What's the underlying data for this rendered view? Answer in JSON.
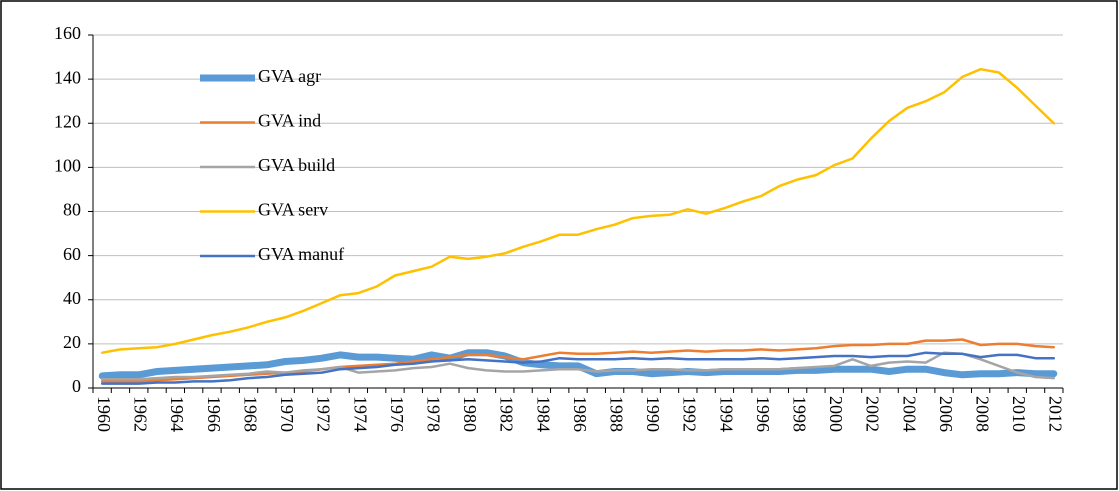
{
  "chart_data": {
    "type": "line",
    "categories": [
      "1960",
      null,
      "1962",
      null,
      "1964",
      null,
      "1966",
      null,
      "1968",
      null,
      "1970",
      null,
      "1972",
      null,
      "1974",
      null,
      "1976",
      null,
      "1978",
      null,
      "1980",
      null,
      "1982",
      null,
      "1984",
      null,
      "1986",
      null,
      "1988",
      null,
      "1990",
      null,
      "1992",
      null,
      "1994",
      null,
      "1996",
      null,
      "1998",
      null,
      "2000",
      null,
      "2002",
      null,
      "2004",
      null,
      "2006",
      null,
      "2008",
      null,
      "2010",
      null,
      "2012"
    ],
    "series": [
      {
        "name": "GVA agr",
        "color": "#5b9bd5",
        "values": [
          5.5,
          6,
          6,
          7.5,
          8,
          8.5,
          9,
          9.5,
          10,
          10.5,
          12,
          12.5,
          13.5,
          15,
          14,
          14,
          13.5,
          13,
          15,
          13.5,
          16,
          16,
          14.5,
          11.5,
          10.5,
          10,
          10,
          6.5,
          7.5,
          7.5,
          6.5,
          7,
          7.5,
          7,
          7.5,
          7.5,
          7.5,
          7.5,
          8,
          8,
          8.5,
          8.5,
          8.5,
          7.5,
          8.5,
          8.5,
          7,
          6,
          6.5,
          6.5,
          7,
          6.5,
          6.5
        ]
      },
      {
        "name": "GVA ind",
        "color": "#ed7d31",
        "values": [
          3,
          3,
          3,
          3.5,
          4,
          4.5,
          5,
          5.5,
          6,
          6.5,
          7,
          7.5,
          8.5,
          9.5,
          10,
          10.5,
          11,
          12,
          13,
          14,
          15,
          15,
          14,
          13,
          14.5,
          16,
          15.5,
          15.5,
          16,
          16.5,
          16,
          16.5,
          17,
          16.5,
          17,
          17,
          17.5,
          17,
          17.5,
          18,
          19,
          19.5,
          19.5,
          20,
          20,
          21.5,
          21.5,
          22,
          19.5,
          20,
          20,
          19,
          18.5
        ]
      },
      {
        "name": "GVA build",
        "color": "#a5a5a5",
        "values": [
          4,
          4,
          4,
          4.5,
          5,
          5,
          5.5,
          6,
          6.5,
          7.5,
          7,
          8,
          8.5,
          9.5,
          7,
          7.5,
          8,
          9,
          9.5,
          11,
          9,
          8,
          7.5,
          7.5,
          8,
          8.5,
          8.5,
          7.5,
          8,
          8,
          8.5,
          8.5,
          8,
          8,
          8.5,
          8.5,
          8.5,
          8.5,
          9,
          9.5,
          10,
          13,
          10,
          11.5,
          12,
          11.5,
          16,
          15.5,
          13,
          10,
          7,
          5,
          4.5
        ]
      },
      {
        "name": "GVA serv",
        "color": "#ffc000",
        "values": [
          16,
          17.5,
          18,
          18.5,
          20,
          22,
          24,
          25.5,
          27.5,
          30,
          32,
          35,
          38.5,
          42,
          43,
          46,
          51,
          53,
          55,
          59.5,
          58.5,
          59.5,
          61,
          64,
          66.5,
          69.5,
          69.5,
          72,
          74,
          77,
          78,
          78.5,
          81,
          79,
          81.5,
          84.5,
          87,
          91.5,
          94.5,
          96.5,
          101,
          104,
          113,
          121,
          127,
          130,
          134,
          141,
          144.5,
          143,
          136,
          128,
          120
        ]
      },
      {
        "name": "GVA manuf",
        "color": "#4472c4",
        "values": [
          2,
          2,
          2,
          2.5,
          2.5,
          3,
          3,
          3.5,
          4.5,
          5,
          6,
          6.5,
          7,
          8.5,
          9,
          9.5,
          10.5,
          11,
          12,
          12.5,
          13,
          12.5,
          12,
          11.5,
          12,
          13.5,
          13,
          13,
          13,
          13.5,
          13,
          13.5,
          13,
          13,
          13,
          13,
          13.5,
          13,
          13.5,
          14,
          14.5,
          14.5,
          14,
          14.5,
          14.5,
          16,
          15.5,
          15.5,
          14,
          15,
          15,
          13.5,
          13.5
        ]
      }
    ],
    "ylim": [
      0,
      160
    ],
    "yticks": [
      0,
      20,
      40,
      60,
      80,
      100,
      120,
      140,
      160
    ],
    "grid": true,
    "legend": "upper left"
  }
}
